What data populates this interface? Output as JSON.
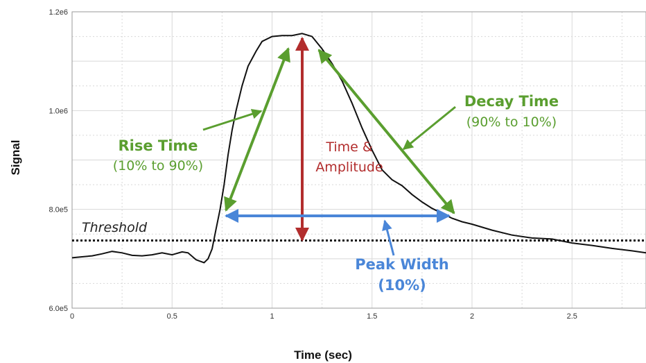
{
  "chart_data": {
    "type": "line",
    "title": "",
    "xlabel": "Time (sec)",
    "ylabel": "Signal",
    "xlim": [
      0,
      2.87
    ],
    "ylim": [
      600000,
      1200000
    ],
    "grid": true,
    "x_ticks": [
      0,
      0.5,
      1,
      1.5,
      2,
      2.5
    ],
    "x_tick_labels": [
      "0",
      "0.5",
      "1",
      "1.5",
      "2",
      "2.5"
    ],
    "y_ticks": [
      600000,
      800000,
      1000000,
      1200000
    ],
    "y_tick_labels": [
      "6.0e5",
      "8.0e5",
      "1.0e6",
      "1.2e6"
    ],
    "series": [
      {
        "x": [
          0,
          0.05,
          0.1,
          0.15,
          0.2,
          0.25,
          0.3,
          0.35,
          0.4,
          0.45,
          0.5,
          0.55,
          0.58,
          0.62,
          0.66,
          0.68,
          0.7,
          0.72,
          0.74,
          0.76,
          0.78,
          0.8,
          0.82,
          0.85,
          0.88,
          0.92,
          0.95,
          1.0,
          1.05,
          1.1,
          1.15,
          1.2,
          1.25,
          1.3,
          1.35,
          1.4,
          1.45,
          1.5,
          1.55,
          1.6,
          1.65,
          1.7,
          1.75,
          1.8,
          1.85,
          1.9,
          1.95,
          2.0,
          2.1,
          2.2,
          2.3,
          2.4,
          2.5,
          2.6,
          2.7,
          2.8,
          2.87
        ],
        "y": [
          702000,
          704000,
          706000,
          710000,
          715000,
          712000,
          707000,
          706000,
          708000,
          712000,
          708000,
          714000,
          712000,
          698000,
          692000,
          700000,
          720000,
          760000,
          800000,
          850000,
          910000,
          960000,
          1000000,
          1050000,
          1090000,
          1120000,
          1140000,
          1150000,
          1152000,
          1152000,
          1156000,
          1150000,
          1125000,
          1095000,
          1060000,
          1015000,
          965000,
          920000,
          880000,
          860000,
          848000,
          830000,
          815000,
          802000,
          792000,
          782000,
          775000,
          770000,
          758000,
          748000,
          742000,
          740000,
          732000,
          727000,
          721000,
          716000,
          712000
        ]
      }
    ],
    "threshold": {
      "label": "Threshold",
      "value": 737000
    },
    "annotations": {
      "rise_title": "Rise Time",
      "rise_sub": "(10% to 90%)",
      "decay_title": "Decay Time",
      "decay_sub": "(90% to 10%)",
      "amp_line1": "Time &",
      "amp_line2": "Amplitude",
      "width_line1": "Peak Width",
      "width_line2": "(10%)"
    },
    "colors": {
      "line": "#111111",
      "threshold": "#111111",
      "rise_decay": "#5a9e2f",
      "amplitude": "#b22d2d",
      "peak_width": "#4a86d8",
      "grid": "#d8d8d8"
    }
  }
}
